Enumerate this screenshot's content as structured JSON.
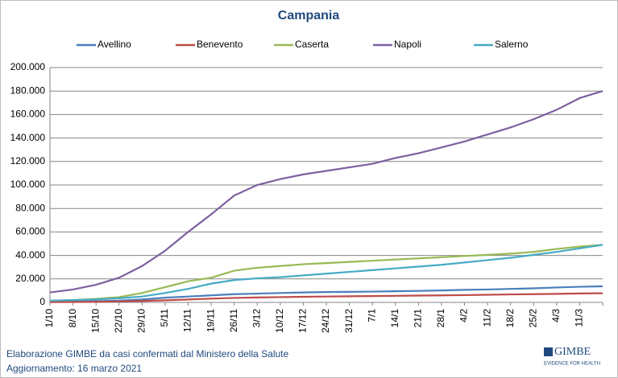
{
  "chart_data": {
    "type": "line",
    "title": "Campania",
    "categories": [
      "1/10",
      "8/10",
      "15/10",
      "22/10",
      "29/10",
      "5/11",
      "12/11",
      "19/11",
      "26/11",
      "3/12",
      "10/12",
      "17/12",
      "24/12",
      "31/12",
      "7/1",
      "14/1",
      "21/1",
      "28/1",
      "4/2",
      "11/2",
      "18/2",
      "25/2",
      "4/3",
      "11/3",
      null
    ],
    "series": [
      {
        "name": "Avellino",
        "color": "#4a7ebb",
        "values": [
          500,
          700,
          1000,
          1500,
          2500,
          4000,
          5000,
          6000,
          7000,
          7500,
          8000,
          8500,
          8800,
          9000,
          9200,
          9500,
          9800,
          10200,
          10700,
          11000,
          11500,
          12000,
          12700,
          13300,
          13700
        ]
      },
      {
        "name": "Benevento",
        "color": "#be4b48",
        "values": [
          200,
          300,
          500,
          800,
          1200,
          1800,
          2500,
          3200,
          3800,
          4200,
          4500,
          4800,
          5000,
          5200,
          5400,
          5600,
          5800,
          6000,
          6200,
          6500,
          6800,
          7000,
          7300,
          7600,
          7800
        ]
      },
      {
        "name": "Caserta",
        "color": "#98b954",
        "values": [
          1500,
          2000,
          3000,
          4500,
          8000,
          13000,
          18000,
          21000,
          27000,
          29500,
          31000,
          32500,
          33500,
          34500,
          35500,
          36500,
          37500,
          38500,
          39500,
          40500,
          41500,
          43000,
          45500,
          47500,
          49000
        ]
      },
      {
        "name": "Napoli",
        "color": "#7d60a0",
        "values": [
          8500,
          11000,
          15000,
          21000,
          31000,
          44000,
          60000,
          75000,
          91000,
          100000,
          105000,
          109000,
          112000,
          115000,
          118000,
          123000,
          127000,
          132000,
          137000,
          143000,
          149000,
          156000,
          164000,
          174000,
          180000
        ]
      },
      {
        "name": "Salerno",
        "color": "#46aac5",
        "values": [
          1500,
          2000,
          2500,
          3500,
          5000,
          8000,
          11500,
          16000,
          19000,
          20500,
          21500,
          23000,
          24500,
          26000,
          27500,
          29000,
          30500,
          32000,
          34000,
          36000,
          38000,
          40500,
          43000,
          46000,
          49000
        ]
      }
    ],
    "ylim": [
      0,
      200000
    ],
    "yticks": [
      0,
      {
        "value": 20000,
        "label": "20.000"
      },
      {
        "value": 40000,
        "label": "40.000"
      },
      {
        "value": 60000,
        "label": "60.000"
      },
      {
        "value": 80000,
        "label": "80.000"
      },
      {
        "value": 100000,
        "label": "100.000"
      },
      {
        "value": 120000,
        "label": "120.000"
      },
      {
        "value": 140000,
        "label": "140.000"
      },
      {
        "value": 160000,
        "label": "160.000"
      },
      {
        "value": 180000,
        "label": "180.000"
      },
      {
        "value": 200000,
        "label": "200.000"
      }
    ],
    "grid": true,
    "legend": "top"
  },
  "footer": {
    "source": "Elaborazione GIMBE da casi confermati dal Ministero della Salute",
    "updated": "Aggiornamento: 16 marzo 2021"
  },
  "logo": {
    "name": "GIMBE",
    "tagline": "EVIDENCE FOR HEALTH"
  }
}
